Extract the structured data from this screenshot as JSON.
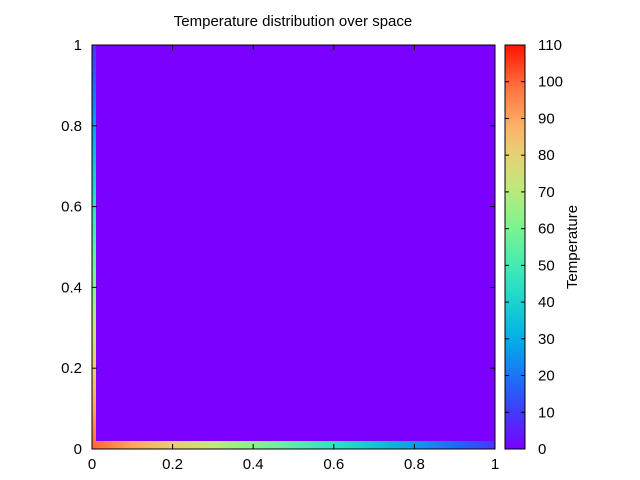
{
  "chart_data": {
    "type": "heatmap",
    "title": "Temperature distribution over space",
    "xlabel": "",
    "ylabel": "",
    "xlim": [
      0,
      1
    ],
    "ylim": [
      0,
      1
    ],
    "x_ticks": [
      0,
      0.2,
      0.4,
      0.6,
      0.8,
      1
    ],
    "x_tick_labels": [
      "0",
      "0.2",
      "0.4",
      "0.6",
      "0.8",
      "1"
    ],
    "y_ticks": [
      0,
      0.2,
      0.4,
      0.6,
      0.8,
      1
    ],
    "y_tick_labels": [
      "0",
      "0.2",
      "0.4",
      "0.6",
      "0.8",
      "1"
    ],
    "colorbar": {
      "label": "Temperature",
      "range": [
        0,
        110
      ],
      "ticks": [
        0,
        10,
        20,
        30,
        40,
        50,
        60,
        70,
        80,
        90,
        100,
        110
      ],
      "tick_labels": [
        "0",
        "10",
        "20",
        "30",
        "40",
        "50",
        "60",
        "70",
        "80",
        "90",
        "100",
        "110"
      ],
      "colormap": "rainbow"
    },
    "interior_value": 0,
    "boundary_values": {
      "bottom_edge": {
        "x": [
          0,
          0.1,
          0.2,
          0.3,
          0.4,
          0.5,
          0.6,
          0.7,
          0.8,
          0.9,
          1.0
        ],
        "value": [
          100,
          90,
          81,
          72,
          62,
          54,
          45,
          36,
          27,
          18,
          9
        ]
      },
      "left_edge": {
        "y": [
          0,
          0.1,
          0.2,
          0.3,
          0.4,
          0.5,
          0.6,
          0.7,
          0.8,
          0.9,
          1.0
        ],
        "value": [
          100,
          90,
          81,
          72,
          62,
          54,
          45,
          36,
          27,
          18,
          9
        ]
      }
    },
    "grid": false
  }
}
